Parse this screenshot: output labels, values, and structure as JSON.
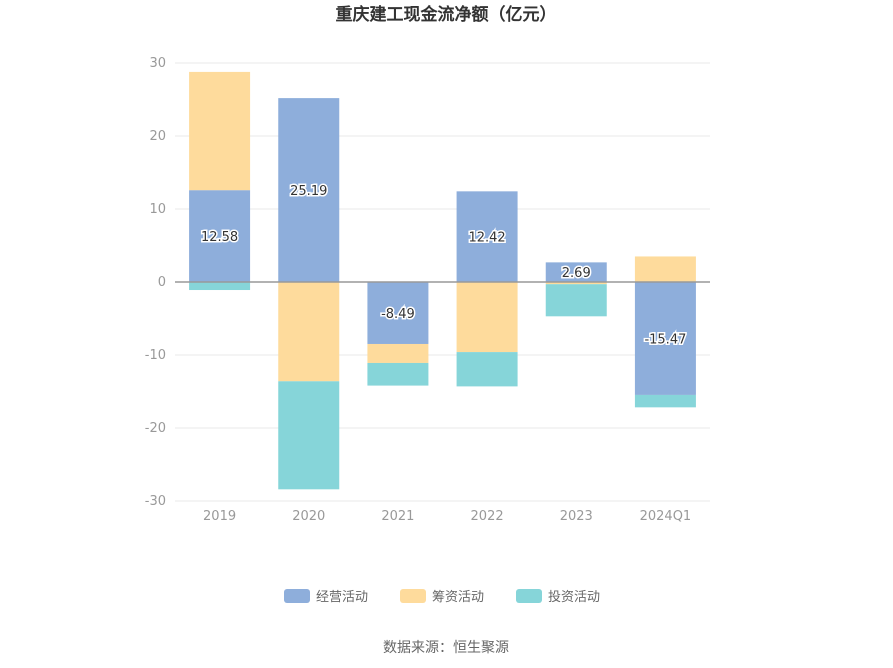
{
  "chart_data": {
    "type": "bar",
    "stacked": true,
    "title": "重庆建工现金流净额（亿元）",
    "categories": [
      "2019",
      "2020",
      "2021",
      "2022",
      "2023",
      "2024Q1"
    ],
    "series": [
      {
        "name": "经营活动",
        "color": "#8eaedb",
        "values": [
          12.58,
          25.19,
          -8.49,
          12.42,
          2.69,
          -15.47
        ]
      },
      {
        "name": "筹资活动",
        "color": "#fedb9c",
        "values": [
          16.2,
          -13.6,
          -2.6,
          -9.6,
          -0.3,
          3.5
        ]
      },
      {
        "name": "投资活动",
        "color": "#86d5d9",
        "values": [
          -1.1,
          -14.8,
          -3.1,
          -4.7,
          -4.4,
          -1.7
        ]
      }
    ],
    "data_labels": [
      "12.58",
      "25.19",
      "-8.49",
      "12.42",
      "2.69",
      "-15.47"
    ],
    "ylim": [
      -30,
      30
    ],
    "yticks": [
      "30",
      "20",
      "10",
      "0",
      "-10",
      "-20",
      "-30"
    ],
    "grid": true,
    "legend_position": "bottom"
  },
  "source": "数据来源：恒生聚源"
}
